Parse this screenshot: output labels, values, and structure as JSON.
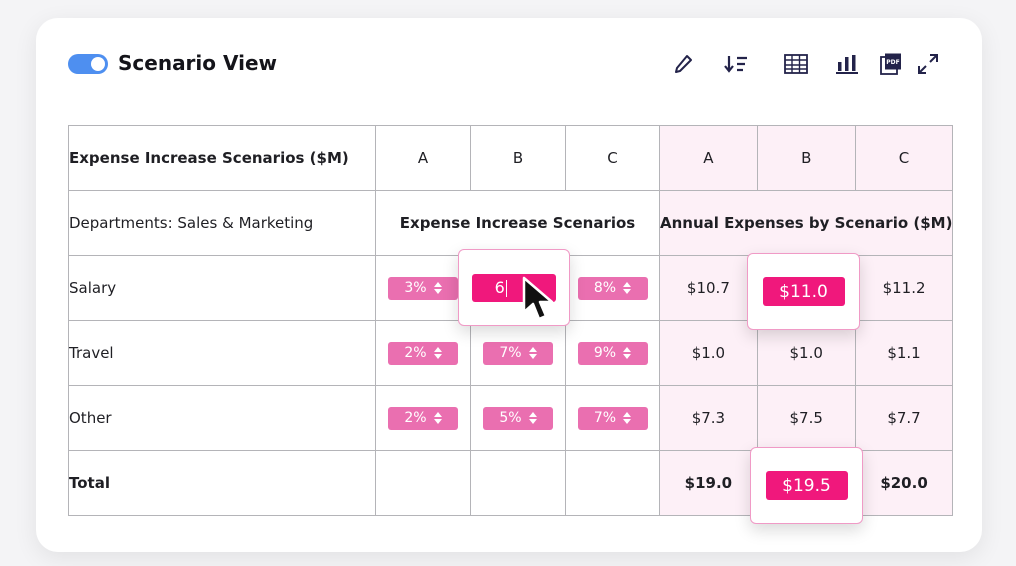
{
  "header": {
    "toggle_on": true,
    "title": "Scenario View",
    "tools": [
      "pencil-icon",
      "sort-icon",
      "table-icon",
      "bar-chart-icon",
      "pdf-icon",
      "expand-icon"
    ]
  },
  "table": {
    "corner": "Expense Increase Scenarios ($M)",
    "scenario_headers": [
      "A",
      "B",
      "C"
    ],
    "department_label": "Departments: Sales & Marketing",
    "increase_group": "Expense Increase Scenarios",
    "expense_group": "Annual Expenses by Scenario ($M)",
    "rows": [
      {
        "label": "Salary",
        "pcts": [
          "3%",
          "6",
          "8%"
        ],
        "vals": [
          "$10.7",
          "$11.0",
          "$11.2"
        ]
      },
      {
        "label": "Travel",
        "pcts": [
          "2%",
          "7%",
          "9%"
        ],
        "vals": [
          "$1.0",
          "$1.0",
          "$1.1"
        ]
      },
      {
        "label": "Other",
        "pcts": [
          "2%",
          "5%",
          "7%"
        ],
        "vals": [
          "$7.3",
          "$7.5",
          "$7.7"
        ]
      }
    ],
    "total": {
      "label": "Total",
      "vals": [
        "$19.0",
        "$19.5",
        "$20.0"
      ]
    }
  },
  "colors": {
    "accent": "#f0187c",
    "pill": "#ea6fb0",
    "pink_bg": "#fdf0f7",
    "toggle": "#4e8ff0"
  }
}
